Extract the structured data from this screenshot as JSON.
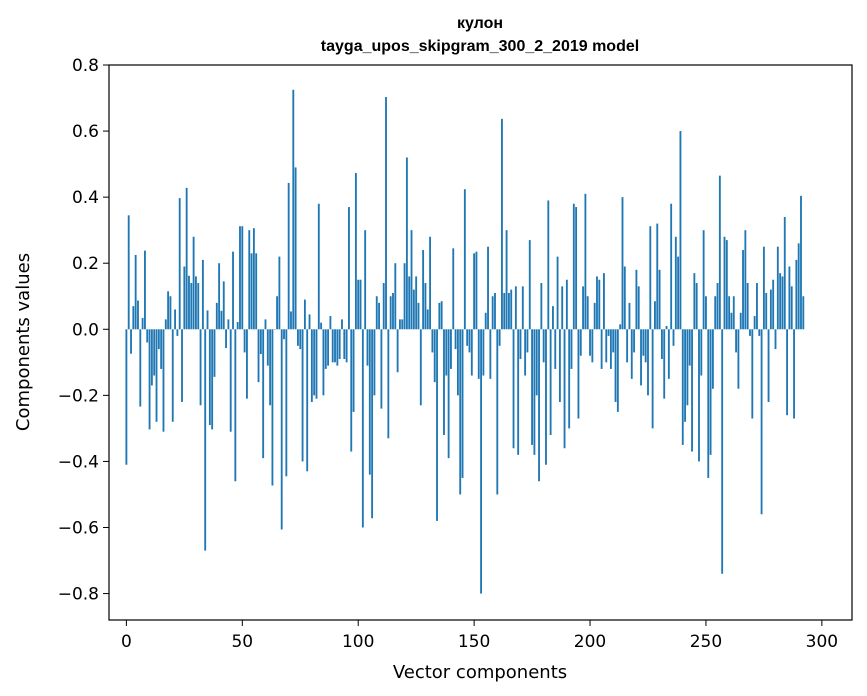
{
  "chart_data": {
    "type": "bar",
    "title": "кулон",
    "subtitle": "tayga_upos_skipgram_300_2_2019 model",
    "xlabel": "Vector components",
    "ylabel": "Components values",
    "xlim": [
      -7.5,
      313
    ],
    "ylim": [
      -0.88,
      0.8
    ],
    "xticks": [
      0,
      50,
      100,
      150,
      200,
      250,
      300
    ],
    "yticks": [
      -0.8,
      -0.6,
      -0.4,
      -0.2,
      0.0,
      0.2,
      0.4,
      0.6,
      0.8
    ],
    "ytick_labels": [
      "−0.8",
      "−0.6",
      "−0.4",
      "−0.2",
      "0.0",
      "0.2",
      "0.4",
      "0.6",
      "0.8"
    ],
    "xtick_labels": [
      "0",
      "50",
      "100",
      "150",
      "200",
      "250",
      "300"
    ],
    "bar_color": "#1f77b4",
    "values": [
      -0.41,
      0.345,
      -0.074,
      0.07,
      0.225,
      0.087,
      -0.234,
      0.034,
      0.238,
      -0.04,
      -0.303,
      -0.17,
      -0.14,
      -0.28,
      -0.06,
      -0.12,
      -0.31,
      0.03,
      0.115,
      0.1,
      -0.28,
      0.06,
      -0.02,
      0.397,
      -0.22,
      0.19,
      0.428,
      0.162,
      0.14,
      0.28,
      0.16,
      0.14,
      -0.23,
      0.21,
      -0.67,
      0.057,
      -0.29,
      -0.303,
      -0.144,
      0.08,
      0.2,
      0.056,
      0.145,
      -0.057,
      0.03,
      -0.31,
      0.235,
      -0.46,
      0.022,
      0.312,
      0.312,
      -0.07,
      -0.21,
      0.3,
      0.23,
      0.306,
      0.23,
      -0.16,
      -0.075,
      -0.39,
      0.03,
      -0.11,
      -0.23,
      -0.473,
      0.0,
      0.1,
      0.22,
      -0.606,
      -0.03,
      -0.445,
      0.443,
      0.054,
      0.725,
      0.49,
      -0.05,
      -0.06,
      -0.4,
      0.09,
      -0.43,
      0.045,
      -0.22,
      -0.2,
      -0.21,
      0.38,
      0.02,
      -0.2,
      -0.12,
      -0.11,
      0.04,
      -0.1,
      -0.1,
      -0.11,
      -0.09,
      0.03,
      -0.09,
      -0.1,
      0.37,
      -0.37,
      -0.25,
      0.473,
      0.15,
      0.15,
      -0.6,
      0.3,
      -0.11,
      -0.44,
      -0.572,
      -0.2,
      0.1,
      0.08,
      -0.24,
      0.14,
      0.703,
      -0.33,
      0.1,
      0.11,
      0.2,
      -0.13,
      0.03,
      0.03,
      0.2,
      0.52,
      0.16,
      0.3,
      0.12,
      0.16,
      0.08,
      -0.23,
      0.24,
      0.14,
      0.06,
      0.28,
      -0.07,
      -0.16,
      -0.58,
      0.08,
      0.085,
      -0.32,
      -0.14,
      -0.39,
      -0.12,
      0.245,
      -0.06,
      -0.2,
      -0.5,
      -0.45,
      0.424,
      -0.05,
      -0.07,
      -0.14,
      0.23,
      0.235,
      -0.15,
      -0.8,
      -0.14,
      0.05,
      0.25,
      -0.15,
      0.1,
      0.11,
      -0.5,
      -0.05,
      0.637,
      0.11,
      0.3,
      0.11,
      0.12,
      -0.36,
      0.13,
      -0.38,
      -0.09,
      0.13,
      -0.14,
      -0.07,
      0.27,
      -0.35,
      -0.38,
      -0.2,
      -0.46,
      0.14,
      -0.1,
      -0.41,
      0.39,
      -0.32,
      0.07,
      -0.12,
      0.22,
      -0.22,
      0.13,
      -0.36,
      0.15,
      -0.3,
      -0.12,
      0.38,
      0.37,
      -0.27,
      -0.08,
      0.13,
      0.41,
      0.1,
      -0.08,
      -0.1,
      0.08,
      0.16,
      0.15,
      -0.12,
      0.17,
      -0.1,
      -0.02,
      -0.12,
      -0.07,
      -0.22,
      -0.25,
      0.015,
      0.4,
      0.19,
      -0.1,
      0.08,
      -0.15,
      -0.07,
      0.18,
      0.13,
      -0.17,
      -0.08,
      -0.1,
      -0.2,
      0.312,
      -0.3,
      0.085,
      0.32,
      0.18,
      -0.09,
      -0.21,
      0.01,
      -0.15,
      0.38,
      -0.05,
      0.28,
      0.22,
      0.6,
      -0.35,
      -0.28,
      -0.23,
      -0.11,
      -0.37,
      0.17,
      0.14,
      -0.4,
      -0.14,
      0.3,
      0.1,
      -0.45,
      -0.38,
      -0.18,
      0.1,
      0.14,
      0.465,
      -0.74,
      0.28,
      0.27,
      0.1,
      0.05,
      0.1,
      -0.07,
      -0.18,
      0.05,
      0.24,
      0.3,
      0.14,
      -0.02,
      -0.27,
      0.04,
      0.14,
      -0.02,
      -0.56,
      0.25,
      0.11,
      -0.22,
      0.12,
      0.15,
      -0.06,
      0.25,
      0.17,
      0.16,
      0.34,
      -0.26,
      0.19,
      0.13,
      -0.27,
      0.21,
      0.26,
      0.404,
      0.1
    ]
  }
}
